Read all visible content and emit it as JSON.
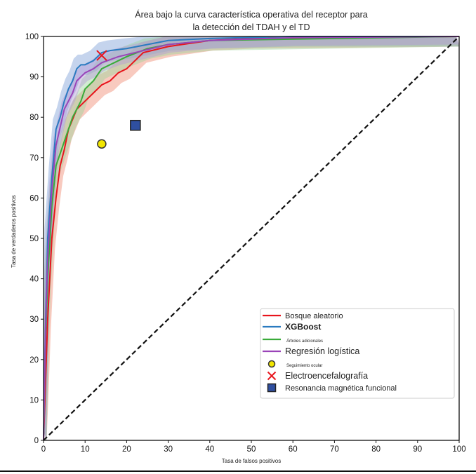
{
  "chart_data": {
    "type": "line",
    "title": [
      "Área bajo la curva característica operativa del receptor para",
      "la detección del TDAH y el TD"
    ],
    "xlabel": "Tasa de falsos positivos",
    "ylabel": "Tasa de verdaderos positivos",
    "xlim": [
      0,
      100
    ],
    "ylim": [
      0,
      100
    ],
    "xticks": [
      0,
      10,
      20,
      30,
      40,
      50,
      60,
      70,
      80,
      90,
      100
    ],
    "yticks": [
      0,
      10,
      20,
      30,
      40,
      50,
      60,
      70,
      80,
      90,
      100
    ],
    "grid": false,
    "legend_position": "bottom-right",
    "series": [
      {
        "name": "Bosque aleatorio",
        "color": "#e8141c",
        "band": "#f08a70",
        "band_width": 2.5,
        "x": [
          0,
          0.5,
          1,
          2,
          3,
          4,
          5,
          6,
          8,
          10,
          12,
          14,
          16,
          18,
          20,
          22,
          24,
          30,
          40,
          50,
          100
        ],
        "y": [
          0,
          15,
          30,
          50,
          60,
          68,
          72,
          77,
          82,
          84,
          86,
          88,
          89,
          91,
          92,
          94,
          96,
          97.5,
          99,
          99.5,
          100
        ]
      },
      {
        "name": "XGBoost",
        "color": "#2a7bc0",
        "band": "#7ea0d8",
        "band_width": 2.5,
        "x": [
          0,
          0.5,
          1,
          2,
          3,
          4,
          5,
          6,
          7,
          8,
          9,
          10,
          12,
          14,
          16,
          20,
          25,
          30,
          40,
          60,
          100
        ],
        "y": [
          0,
          30,
          50,
          65,
          77,
          80,
          84,
          87,
          89,
          92,
          93,
          93,
          94,
          96,
          96.5,
          97,
          98,
          99,
          99.5,
          100,
          100
        ]
      },
      {
        "name": "Árboles adicionales",
        "color": "#3aab3a",
        "band": "#9cd49c",
        "band_width": 2.5,
        "x": [
          0,
          0.5,
          1,
          2,
          3,
          5,
          7,
          9,
          10,
          12,
          14,
          16,
          20,
          25,
          30,
          40,
          100
        ],
        "y": [
          0,
          25,
          40,
          58,
          68,
          74,
          80,
          84,
          87,
          89,
          92,
          93,
          95,
          97,
          98,
          99,
          100
        ]
      },
      {
        "name": "Regresión logística",
        "color": "#9a44b8",
        "band": "#b49ad8",
        "band_width": 2,
        "x": [
          0,
          0.5,
          1,
          2,
          3,
          5,
          7,
          8,
          10,
          12,
          14,
          18,
          22,
          30,
          40,
          60,
          100
        ],
        "y": [
          0,
          28,
          45,
          62,
          73,
          82,
          86,
          89,
          91,
          92,
          93.5,
          95,
          96,
          98,
          99,
          99.7,
          100
        ]
      },
      {
        "name": "Diagonal",
        "color": "#111111",
        "dashed": true,
        "x": [
          0,
          100
        ],
        "y": [
          0,
          100
        ]
      }
    ],
    "points": [
      {
        "name": "Seguimiento ocular",
        "marker": "circle",
        "color": "#f2e600",
        "x": 14,
        "y": 73.4
      },
      {
        "name": "Electroencefalografía",
        "marker": "x",
        "color": "#e8141c",
        "x": 14,
        "y": 95.3
      },
      {
        "name": "Resonancia magnética funcional",
        "marker": "square",
        "color": "#2f4fa0",
        "x": 22.1,
        "y": 78
      }
    ],
    "legend": [
      {
        "label": "Bosque aleatorio",
        "kind": "line",
        "color": "#e8141c",
        "style": "normal"
      },
      {
        "label": "XGBoost",
        "kind": "line",
        "color": "#2a7bc0",
        "style": "bold"
      },
      {
        "label": "Árboles adicionales",
        "kind": "line",
        "color": "#3aab3a",
        "style": "tiny"
      },
      {
        "label": "Regresión logística",
        "kind": "line",
        "color": "#9a44b8",
        "style": "large"
      },
      {
        "label": "Seguimiento ocular",
        "kind": "circle",
        "color": "#f2e600",
        "style": "tiny"
      },
      {
        "label": "Electroencefalografía",
        "kind": "x",
        "color": "#e8141c",
        "style": "large"
      },
      {
        "label": "Resonancia magnética funcional",
        "kind": "square",
        "color": "#2f4fa0",
        "style": "normal"
      }
    ]
  }
}
